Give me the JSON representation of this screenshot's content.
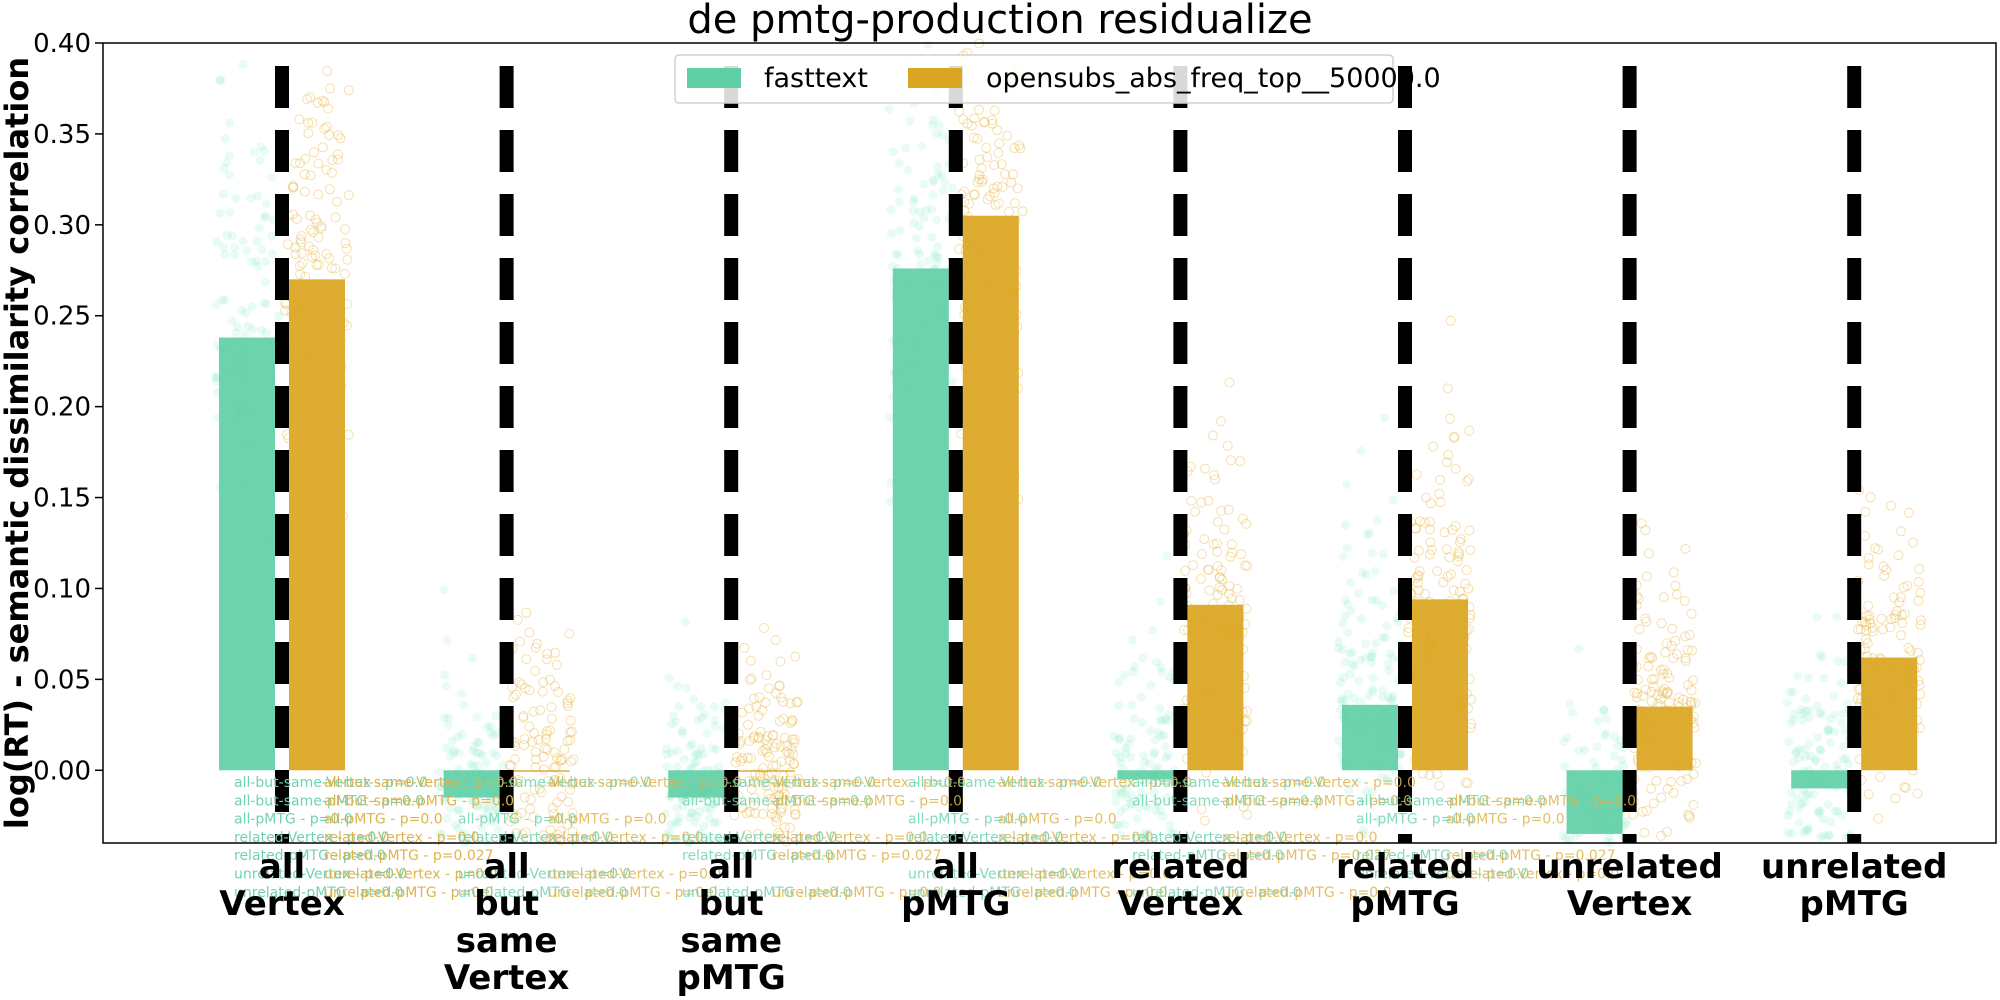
{
  "chart_data": {
    "type": "bar",
    "title": "de pmtg-production residualize",
    "xlabel": "",
    "ylabel": "log(RT) - semantic dissimilarity correlation",
    "ylim": [
      -0.04,
      0.4
    ],
    "yticks": [
      "0.00",
      "0.05",
      "0.10",
      "0.15",
      "0.20",
      "0.25",
      "0.30",
      "0.35",
      "0.40"
    ],
    "ytick_values": [
      0.0,
      0.05,
      0.1,
      0.15,
      0.2,
      0.25,
      0.3,
      0.35,
      0.4
    ],
    "grid": false,
    "legend_placement": "top-center",
    "categories": [
      [
        "all",
        "Vertex"
      ],
      [
        "all",
        "but",
        "same",
        "Vertex"
      ],
      [
        "all",
        "but",
        "same",
        "pMTG"
      ],
      [
        "all",
        "pMTG"
      ],
      [
        "related",
        "Vertex"
      ],
      [
        "related",
        "pMTG"
      ],
      [
        "unrelated",
        "Vertex"
      ],
      [
        "unrelated",
        "pMTG"
      ]
    ],
    "series": [
      {
        "name": "fasttext",
        "color": "#5fcfa6",
        "scatter_color": "#7ee8c4",
        "values": [
          0.238,
          -0.015,
          -0.015,
          0.276,
          -0.005,
          0.036,
          -0.035,
          -0.01
        ],
        "spread": [
          0.07,
          0.03,
          0.03,
          0.07,
          0.04,
          0.05,
          0.04,
          0.04
        ]
      },
      {
        "name": "opensubs_abs_freq_top__50000.0",
        "color": "#daa520",
        "scatter_color": "#e8b84a",
        "values": [
          0.27,
          0.0,
          0.0,
          0.305,
          0.091,
          0.094,
          0.035,
          0.062
        ],
        "spread": [
          0.06,
          0.04,
          0.03,
          0.06,
          0.045,
          0.045,
          0.04,
          0.04
        ]
      }
    ],
    "annotations": {
      "fasttext": [
        "all-but-same-Vertex - p=0.0",
        "all-but-same-pMTG - p=0.0",
        "all-pMTG - p=0.0",
        "related-Vertex - p=0.0",
        "related-pMTG - p=0.0",
        "unrelated-Vertex - p=0.0",
        "unrelated-pMTG - p=0.0"
      ],
      "opensubs": [
        "all-but-same-Vertex - p=0.0",
        "all-but-same-pMTG - p=0.0",
        "all-pMTG - p=0.0",
        "related-Vertex - p=0.0",
        "related-pMTG - p=0.027",
        "unrelated-Vertex - p=0.0",
        "unrelated-pMTG - p=0.0"
      ]
    }
  }
}
